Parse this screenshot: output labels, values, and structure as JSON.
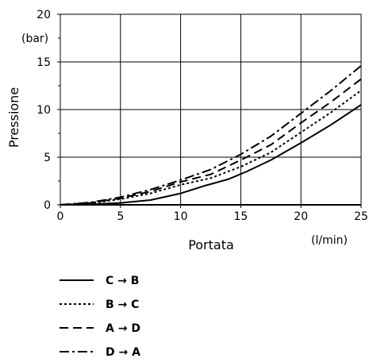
{
  "chart_data": {
    "type": "line",
    "xlabel": "Portata",
    "ylabel": "Pressione",
    "x_unit": "(l/min)",
    "y_unit": "(bar)",
    "xlim": [
      0,
      25
    ],
    "ylim": [
      0,
      20
    ],
    "xticks": [
      0,
      5,
      10,
      15,
      20,
      25
    ],
    "yticks": [
      0,
      5,
      10,
      15,
      20
    ],
    "grid": true,
    "legend_position": "bottom",
    "series": [
      {
        "name": "C → B",
        "dash": "solid",
        "points": [
          [
            0,
            0
          ],
          [
            2.5,
            0.05
          ],
          [
            5,
            0.2
          ],
          [
            7.5,
            0.5
          ],
          [
            10,
            1.2
          ],
          [
            12,
            2
          ],
          [
            14,
            2.7
          ],
          [
            15.5,
            3.5
          ],
          [
            17.5,
            4.7
          ],
          [
            20,
            6.5
          ],
          [
            22.5,
            8.4
          ],
          [
            25,
            10.5
          ]
        ]
      },
      {
        "name": "B → C",
        "dash": "dotted",
        "points": [
          [
            0,
            0
          ],
          [
            2.5,
            0.15
          ],
          [
            5,
            0.6
          ],
          [
            7.5,
            1.2
          ],
          [
            10,
            2.1
          ],
          [
            12.5,
            2.8
          ],
          [
            15,
            4.0
          ],
          [
            17.5,
            5.5
          ],
          [
            20,
            7.6
          ],
          [
            22.5,
            9.7
          ],
          [
            25,
            12.0
          ]
        ]
      },
      {
        "name": "A → D",
        "dash": "dashed",
        "points": [
          [
            0,
            0
          ],
          [
            2.5,
            0.2
          ],
          [
            5,
            0.7
          ],
          [
            7.5,
            1.4
          ],
          [
            10,
            2.4
          ],
          [
            12.5,
            3.2
          ],
          [
            15,
            4.7
          ],
          [
            17.5,
            6.3
          ],
          [
            20,
            8.6
          ],
          [
            22.5,
            10.8
          ],
          [
            25,
            13.2
          ]
        ]
      },
      {
        "name": "D → A",
        "dash": "dashdot",
        "points": [
          [
            0,
            0
          ],
          [
            2.5,
            0.25
          ],
          [
            5,
            0.8
          ],
          [
            7.5,
            1.6
          ],
          [
            10,
            2.6
          ],
          [
            12.5,
            3.7
          ],
          [
            15,
            5.3
          ],
          [
            17.5,
            7.2
          ],
          [
            20,
            9.6
          ],
          [
            22.5,
            12.0
          ],
          [
            25,
            14.6
          ]
        ]
      }
    ]
  }
}
